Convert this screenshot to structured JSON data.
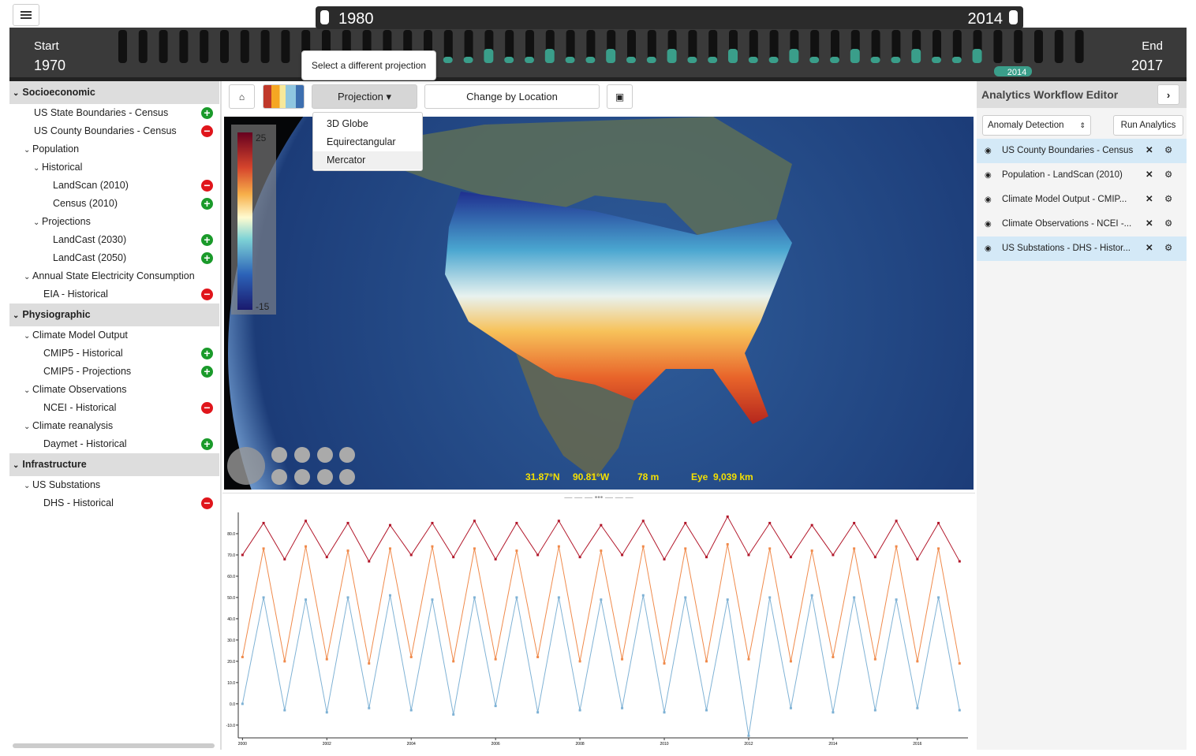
{
  "timeline": {
    "start_label": "Start",
    "start_year": "1970",
    "end_label": "End",
    "end_year": "2017",
    "range_start": "1980",
    "range_end": "2014",
    "marker": "2014"
  },
  "toolbar": {
    "projection": "Projection",
    "tooltip": "Select a different projection",
    "change_location": "Change by Location"
  },
  "projection_menu": [
    "3D Globe",
    "Equirectangular",
    "Mercator"
  ],
  "sidebar": [
    {
      "title": "Socioeconomic",
      "children": [
        {
          "label": "US State Boundaries - Census",
          "icon": "add"
        },
        {
          "label": "US County Boundaries - Census",
          "icon": "remove"
        },
        {
          "label": "Population",
          "children": [
            {
              "label": "Historical",
              "children": [
                {
                  "label": "LandScan (2010)",
                  "icon": "remove"
                },
                {
                  "label": "Census (2010)",
                  "icon": "add"
                }
              ]
            },
            {
              "label": "Projections",
              "children": [
                {
                  "label": "LandCast (2030)",
                  "icon": "add"
                },
                {
                  "label": "LandCast (2050)",
                  "icon": "add"
                }
              ]
            }
          ]
        },
        {
          "label": "Annual State Electricity Consumption",
          "children": [
            {
              "label": "EIA - Historical",
              "icon": "remove"
            }
          ]
        }
      ]
    },
    {
      "title": "Physiographic",
      "children": [
        {
          "label": "Climate Model Output",
          "children": [
            {
              "label": "CMIP5 - Historical",
              "icon": "add"
            },
            {
              "label": "CMIP5 - Projections",
              "icon": "add"
            }
          ]
        },
        {
          "label": "Climate Observations",
          "children": [
            {
              "label": "NCEI - Historical",
              "icon": "remove"
            }
          ]
        },
        {
          "label": "Climate reanalysis",
          "children": [
            {
              "label": "Daymet - Historical",
              "icon": "add"
            }
          ]
        }
      ]
    },
    {
      "title": "Infrastructure",
      "children": [
        {
          "label": "US Substations",
          "children": [
            {
              "label": "DHS - Historical",
              "icon": "remove"
            }
          ]
        }
      ]
    }
  ],
  "map": {
    "colorbar": {
      "max": 25,
      "min": -15
    },
    "status": {
      "latitude": "31.87°N",
      "longitude": "90.81°W",
      "elevation": "78 m",
      "eye_label": "Eye",
      "eye_distance": "9,039 km"
    }
  },
  "analytics": {
    "title": "Analytics Workflow Editor",
    "method": "Anomaly Detection",
    "run": "Run Analytics",
    "layers": [
      {
        "label": "US County Boundaries - Census",
        "highlighted": true
      },
      {
        "label": "Population - LandScan (2010)",
        "highlighted": false
      },
      {
        "label": "Climate Model Output - CMIP...",
        "highlighted": false
      },
      {
        "label": "Climate Observations - NCEI -...",
        "highlighted": false
      },
      {
        "label": "US Substations - DHS - Histor...",
        "highlighted": true
      }
    ]
  },
  "chart_data": {
    "type": "line",
    "x": [
      2000,
      2000.5,
      2001,
      2001.5,
      2002,
      2002.5,
      2003,
      2003.5,
      2004,
      2004.5,
      2005,
      2005.5,
      2006,
      2006.5,
      2007,
      2007.5,
      2008,
      2008.5,
      2009,
      2009.5,
      2010,
      2010.5,
      2011,
      2011.5,
      2012,
      2012.5,
      2013,
      2013.5,
      2014,
      2014.5,
      2015,
      2015.5,
      2016,
      2016.5,
      2017
    ],
    "xlim": [
      1999.9,
      2017.2
    ],
    "xticks": [
      2000,
      2002,
      2004,
      2006,
      2008,
      2010,
      2012,
      2014,
      2016
    ],
    "ylim": [
      -16,
      90
    ],
    "yticks": [
      {
        "value": -10,
        "label": "-10.0"
      },
      {
        "value": 0,
        "label": "0.0"
      },
      {
        "value": 10,
        "label": "10.0"
      },
      {
        "value": 20,
        "label": "20.0"
      },
      {
        "value": 30,
        "label": "30.0"
      },
      {
        "value": 40,
        "label": "40.0"
      },
      {
        "value": 50,
        "label": "50.0"
      },
      {
        "value": 60,
        "label": "60.0"
      },
      {
        "value": 70,
        "label": "70.0"
      },
      {
        "value": 80,
        "label": "80.0"
      }
    ],
    "series": [
      {
        "color": "#b2182b",
        "values": [
          70,
          85,
          68,
          86,
          69,
          85,
          67,
          84,
          70,
          85,
          69,
          86,
          68,
          85,
          70,
          86,
          69,
          84,
          70,
          86,
          68,
          85,
          69,
          88,
          70,
          85,
          69,
          84,
          70,
          85,
          69,
          86,
          68,
          85,
          67
        ]
      },
      {
        "color": "#f08a4b",
        "values": [
          22,
          73,
          20,
          74,
          21,
          72,
          19,
          73,
          22,
          74,
          20,
          73,
          21,
          72,
          22,
          74,
          20,
          72,
          21,
          74,
          19,
          73,
          20,
          75,
          21,
          73,
          20,
          72,
          22,
          73,
          21,
          74,
          20,
          73,
          19
        ]
      },
      {
        "color": "#7fb2d5",
        "values": [
          0,
          50,
          -3,
          49,
          -4,
          50,
          -2,
          51,
          -3,
          49,
          -5,
          50,
          -1,
          50,
          -4,
          50,
          -3,
          49,
          -2,
          51,
          -4,
          50,
          -3,
          49,
          -15,
          50,
          -2,
          51,
          -4,
          50,
          -3,
          49,
          -2,
          50,
          -3
        ]
      }
    ]
  }
}
